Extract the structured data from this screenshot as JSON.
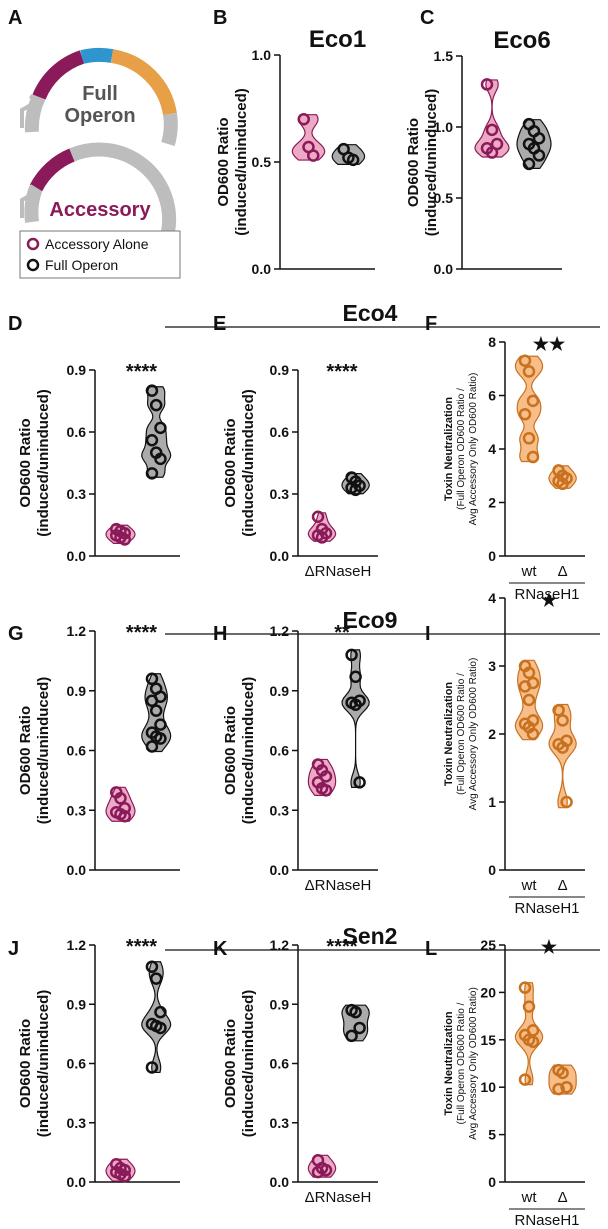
{
  "panel_a": {
    "label": "A",
    "full_operon_text": [
      "Full",
      "Operon"
    ],
    "accessory_text": "Accessory",
    "legend": [
      "Accessory Alone",
      "Full Operon"
    ],
    "legend_colors": [
      "#8b1a5a",
      "#111111"
    ]
  },
  "section_titles": [
    "Eco4",
    "Eco9",
    "Sen2"
  ],
  "chart_data": [
    {
      "type": "violin",
      "panel": "B",
      "title": "Eco1",
      "ylabel": [
        "OD600 Ratio",
        "(induced/uninduced)"
      ],
      "ylim": [
        0,
        1.0
      ],
      "yticks": [
        {
          "value": 0,
          "label": "0.0"
        },
        0.5,
        {
          "value": 1.0,
          "label": "1.0"
        }
      ],
      "series": [
        {
          "color": "#8b1a5a",
          "fill": "#e58db2",
          "values": [
            0.7,
            0.57,
            0.53
          ]
        },
        {
          "color": "#111111",
          "fill": "#8f8f8f",
          "values": [
            0.56,
            0.52,
            0.51
          ]
        }
      ]
    },
    {
      "type": "violin",
      "panel": "C",
      "title": "Eco6",
      "ylabel": [
        "OD600 Ratio",
        "(induced/uninduced)"
      ],
      "ylim": [
        0,
        1.5
      ],
      "yticks": [
        {
          "value": 0,
          "label": "0.0"
        },
        0.5,
        {
          "value": 1.0,
          "label": "1.0"
        },
        1.5
      ],
      "series": [
        {
          "color": "#8b1a5a",
          "fill": "#e58db2",
          "values": [
            1.3,
            0.98,
            0.88,
            0.85,
            0.82
          ]
        },
        {
          "color": "#111111",
          "fill": "#8f8f8f",
          "values": [
            1.02,
            0.97,
            0.92,
            0.88,
            0.85,
            0.8,
            0.74
          ]
        }
      ]
    },
    {
      "type": "violin",
      "panel": "D",
      "significance": "****",
      "ylabel": [
        "OD600 Ratio",
        "(induced/uninduced)"
      ],
      "ylim": [
        0,
        0.9
      ],
      "yticks": [
        {
          "value": 0,
          "label": "0.0"
        },
        0.3,
        0.6,
        0.9
      ],
      "series": [
        {
          "color": "#8b1a5a",
          "fill": "#e58db2",
          "values": [
            0.13,
            0.12,
            0.11,
            0.1,
            0.09,
            0.08
          ]
        },
        {
          "color": "#111111",
          "fill": "#8f8f8f",
          "values": [
            0.8,
            0.73,
            0.62,
            0.56,
            0.5,
            0.47,
            0.4
          ]
        }
      ]
    },
    {
      "type": "violin",
      "panel": "E",
      "significance": "****",
      "xlabel": "ΔRNaseH",
      "ylabel": [
        "OD600 Ratio",
        "(induced/uninduced)"
      ],
      "ylim": [
        0,
        0.9
      ],
      "yticks": [
        {
          "value": 0,
          "label": "0.0"
        },
        0.3,
        0.6,
        0.9
      ],
      "series": [
        {
          "color": "#8b1a5a",
          "fill": "#e58db2",
          "values": [
            0.19,
            0.13,
            0.11,
            0.1,
            0.09
          ]
        },
        {
          "color": "#111111",
          "fill": "#8f8f8f",
          "values": [
            0.38,
            0.36,
            0.34,
            0.33,
            0.32
          ]
        }
      ]
    },
    {
      "type": "violin",
      "panel": "F",
      "significance": "★★",
      "categories": [
        "wt",
        "Δ"
      ],
      "xlabel": "RNaseH1",
      "ylabel": [
        "Toxin Neutralization",
        "(Full Operon OD600 Ratio /",
        "Avg Accessory Only OD600 Ratio)"
      ],
      "ylim": [
        0,
        8
      ],
      "yticks": [
        0,
        2,
        4,
        6,
        8
      ],
      "series": [
        {
          "color": "#c8711f",
          "fill": "#f4a862",
          "values": [
            7.3,
            6.9,
            5.8,
            5.3,
            4.4,
            3.7
          ]
        },
        {
          "color": "#c8711f",
          "fill": "#f4a862",
          "values": [
            3.2,
            3.0,
            2.9,
            2.8,
            2.7
          ]
        }
      ]
    },
    {
      "type": "violin",
      "panel": "G",
      "significance": "****",
      "ylabel": [
        "OD600 Ratio",
        "(induced/uninduced)"
      ],
      "ylim": [
        0,
        1.2
      ],
      "yticks": [
        {
          "value": 0,
          "label": "0.0"
        },
        0.3,
        0.6,
        0.9,
        1.2
      ],
      "series": [
        {
          "color": "#8b1a5a",
          "fill": "#e58db2",
          "values": [
            0.39,
            0.36,
            0.31,
            0.29,
            0.28,
            0.27
          ]
        },
        {
          "color": "#111111",
          "fill": "#8f8f8f",
          "values": [
            0.96,
            0.91,
            0.87,
            0.85,
            0.8,
            0.73,
            0.69,
            0.67,
            0.66,
            0.62
          ]
        }
      ]
    },
    {
      "type": "violin",
      "panel": "H",
      "significance": "**",
      "xlabel": "ΔRNaseH",
      "ylabel": [
        "OD600 Ratio",
        "(induced/uninduced)"
      ],
      "ylim": [
        0,
        1.2
      ],
      "yticks": [
        {
          "value": 0,
          "label": "0.0"
        },
        0.3,
        0.6,
        0.9,
        1.2
      ],
      "series": [
        {
          "color": "#8b1a5a",
          "fill": "#e58db2",
          "values": [
            0.53,
            0.5,
            0.47,
            0.44,
            0.41,
            0.4
          ]
        },
        {
          "color": "#111111",
          "fill": "#8f8f8f",
          "values": [
            1.08,
            0.97,
            0.85,
            0.84,
            0.83,
            0.44
          ]
        }
      ]
    },
    {
      "type": "violin",
      "panel": "I",
      "significance": "★",
      "categories": [
        "wt",
        "Δ"
      ],
      "xlabel": "RNaseH1",
      "ylabel": [
        "Toxin Neutralization",
        "(Full Operon OD600 Ratio /",
        "Avg Accessory Only OD600 Ratio)"
      ],
      "ylim": [
        0,
        4
      ],
      "yticks": [
        0,
        1,
        2,
        3,
        4
      ],
      "series": [
        {
          "color": "#c8711f",
          "fill": "#f4a862",
          "values": [
            3.0,
            2.9,
            2.75,
            2.7,
            2.5,
            2.2,
            2.15,
            2.1,
            2.0
          ]
        },
        {
          "color": "#c8711f",
          "fill": "#f4a862",
          "values": [
            2.35,
            2.2,
            1.9,
            1.85,
            1.8,
            1.0
          ]
        }
      ]
    },
    {
      "type": "violin",
      "panel": "J",
      "significance": "****",
      "ylabel": [
        "OD600 Ratio",
        "(induced/uninduced)"
      ],
      "ylim": [
        0,
        1.2
      ],
      "yticks": [
        {
          "value": 0,
          "label": "0.0"
        },
        0.3,
        0.6,
        0.9,
        1.2
      ],
      "series": [
        {
          "color": "#8b1a5a",
          "fill": "#e58db2",
          "values": [
            0.09,
            0.07,
            0.06,
            0.05,
            0.04,
            0.03
          ]
        },
        {
          "color": "#111111",
          "fill": "#8f8f8f",
          "values": [
            1.09,
            1.03,
            0.86,
            0.8,
            0.79,
            0.78,
            0.58
          ]
        }
      ]
    },
    {
      "type": "violin",
      "panel": "K",
      "significance": "****",
      "xlabel": "ΔRNaseH",
      "ylabel": [
        "OD600 Ratio",
        "(induced/uninduced)"
      ],
      "ylim": [
        0,
        1.2
      ],
      "yticks": [
        {
          "value": 0,
          "label": "0.0"
        },
        0.3,
        0.6,
        0.9,
        1.2
      ],
      "series": [
        {
          "color": "#8b1a5a",
          "fill": "#e58db2",
          "values": [
            0.11,
            0.07,
            0.06,
            0.05
          ]
        },
        {
          "color": "#111111",
          "fill": "#8f8f8f",
          "values": [
            0.87,
            0.86,
            0.78,
            0.74
          ]
        }
      ]
    },
    {
      "type": "violin",
      "panel": "L",
      "significance": "★",
      "categories": [
        "wt",
        "Δ"
      ],
      "xlabel": "RNaseH1",
      "ylabel": [
        "Toxin Neutralization",
        "(Full Operon OD600 Ratio /",
        "Avg Accessory Only OD600 Ratio)"
      ],
      "ylim": [
        0,
        25
      ],
      "yticks": [
        0,
        5,
        10,
        15,
        20,
        25
      ],
      "series": [
        {
          "color": "#c8711f",
          "fill": "#f4a862",
          "values": [
            20.5,
            18.5,
            16.0,
            15.5,
            15.0,
            14.8,
            10.8
          ]
        },
        {
          "color": "#c8711f",
          "fill": "#f4a862",
          "values": [
            11.8,
            11.5,
            10.0,
            9.8
          ]
        }
      ]
    }
  ]
}
